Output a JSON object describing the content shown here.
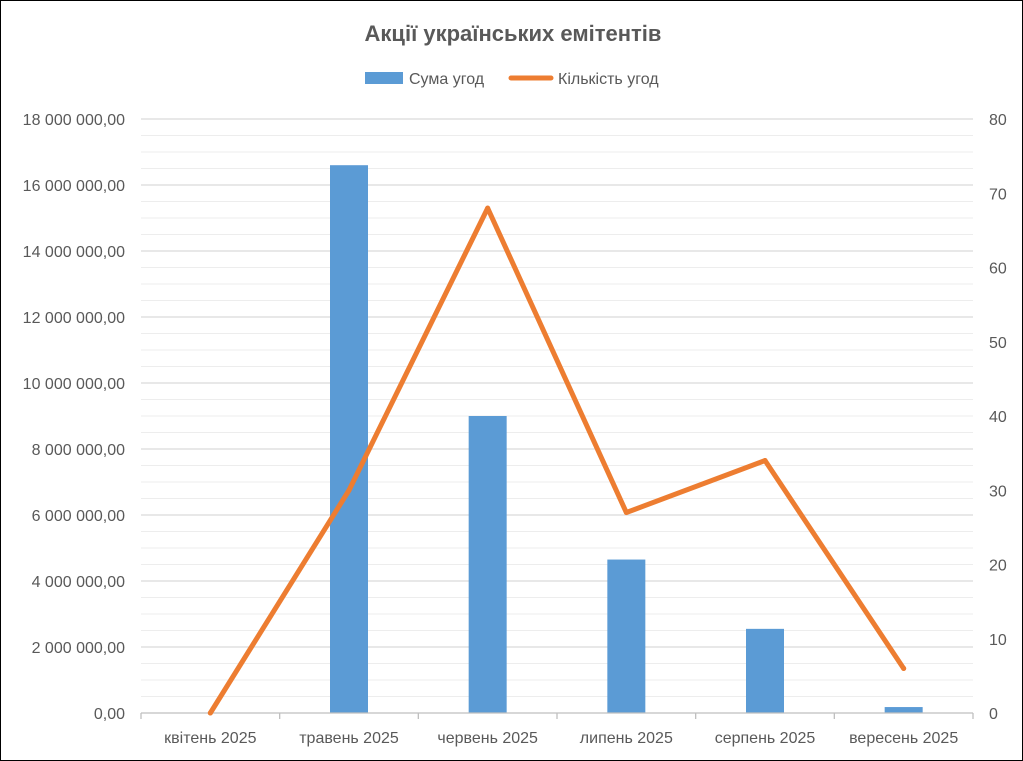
{
  "chart_data": {
    "type": "bar",
    "title": "Акції українських емітентів",
    "categories": [
      "квітень 2025",
      "травень 2025",
      "червень 2025",
      "липень 2025",
      "серпень 2025",
      "вересень 2025"
    ],
    "series": [
      {
        "name": "Сума угод",
        "type": "bar",
        "axis": "left",
        "color": "#5B9BD5",
        "values": [
          0,
          16600000,
          9000000,
          4650000,
          2550000,
          180000
        ]
      },
      {
        "name": "Кількість угод",
        "type": "line",
        "axis": "right",
        "color": "#ED7D31",
        "values": [
          0,
          30,
          68,
          27,
          34,
          6
        ]
      }
    ],
    "y_left": {
      "range": [
        0,
        18000000
      ],
      "ticks": [
        0,
        2000000,
        4000000,
        6000000,
        8000000,
        10000000,
        12000000,
        14000000,
        16000000,
        18000000
      ],
      "tick_labels": [
        "0,00",
        "2 000 000,00",
        "4 000 000,00",
        "6 000 000,00",
        "8 000 000,00",
        "10 000 000,00",
        "12 000 000,00",
        "14 000 000,00",
        "16 000 000,00",
        "18 000 000,00"
      ]
    },
    "y_right": {
      "range": [
        0,
        80
      ],
      "ticks": [
        0,
        10,
        20,
        30,
        40,
        50,
        60,
        70,
        80
      ],
      "tick_labels": [
        "0",
        "10",
        "20",
        "30",
        "40",
        "50",
        "60",
        "70",
        "80"
      ]
    },
    "grid": true,
    "legend_position": "top"
  }
}
